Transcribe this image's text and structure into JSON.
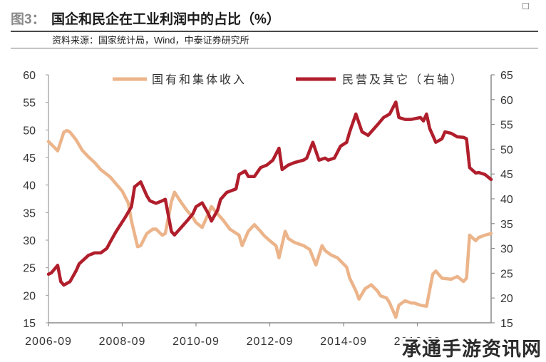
{
  "chart_data": {
    "type": "line",
    "figure_label": "图3：",
    "title": "国企和民企在工业利润中的占比（%）",
    "source": "资料来源：国家统计局，Wind，中泰证券研究所",
    "xlim": [
      "2006-09",
      "2018-09"
    ],
    "x_ticks": [
      "2006-09",
      "2008-09",
      "2010-09",
      "2012-09",
      "2014-09",
      "2016-09"
    ],
    "y_left": {
      "lim": [
        15,
        60
      ],
      "ticks": [
        15,
        20,
        25,
        30,
        35,
        40,
        45,
        50,
        55,
        60
      ]
    },
    "y_right": {
      "lim": [
        15,
        65
      ],
      "ticks": [
        15,
        20,
        25,
        30,
        35,
        40,
        45,
        50,
        55,
        60,
        65
      ]
    },
    "grid": false,
    "legend_position": "top",
    "series": [
      {
        "name": "国有和集体收入",
        "axis": "left",
        "color": "#ECB48A",
        "points": [
          [
            "2006-09",
            47.9
          ],
          [
            "2006-11",
            46.8
          ],
          [
            "2006-12",
            46.2
          ],
          [
            "2007-02",
            49.6
          ],
          [
            "2007-03",
            49.9
          ],
          [
            "2007-04",
            49.6
          ],
          [
            "2007-06",
            48.2
          ],
          [
            "2007-08",
            46.3
          ],
          [
            "2007-10",
            45.1
          ],
          [
            "2007-12",
            44.1
          ],
          [
            "2008-02",
            42.8
          ],
          [
            "2008-05",
            41.5
          ],
          [
            "2008-07",
            40.2
          ],
          [
            "2008-09",
            38.9
          ],
          [
            "2008-11",
            36.7
          ],
          [
            "2008-12",
            33.5
          ],
          [
            "2009-02",
            28.8
          ],
          [
            "2009-03",
            29.0
          ],
          [
            "2009-05",
            31.2
          ],
          [
            "2009-07",
            32.0
          ],
          [
            "2009-08",
            32.0
          ],
          [
            "2009-10",
            30.9
          ],
          [
            "2009-11",
            31.2
          ],
          [
            "2010-01",
            37.0
          ],
          [
            "2010-02",
            38.7
          ],
          [
            "2010-04",
            37.0
          ],
          [
            "2010-06",
            35.4
          ],
          [
            "2010-08",
            34.1
          ],
          [
            "2010-09",
            33.2
          ],
          [
            "2010-11",
            32.3
          ],
          [
            "2011-01",
            34.8
          ],
          [
            "2011-02",
            36.1
          ],
          [
            "2011-04",
            34.8
          ],
          [
            "2011-06",
            33.5
          ],
          [
            "2011-08",
            32.0
          ],
          [
            "2011-11",
            30.9
          ],
          [
            "2011-12",
            29.0
          ],
          [
            "2012-02",
            31.6
          ],
          [
            "2012-04",
            32.8
          ],
          [
            "2012-06",
            31.6
          ],
          [
            "2012-07",
            30.9
          ],
          [
            "2012-09",
            29.9
          ],
          [
            "2012-11",
            29.0
          ],
          [
            "2012-12",
            26.8
          ],
          [
            "2013-02",
            31.6
          ],
          [
            "2013-03",
            30.3
          ],
          [
            "2013-05",
            29.6
          ],
          [
            "2013-08",
            29.0
          ],
          [
            "2013-10",
            28.3
          ],
          [
            "2013-12",
            25.5
          ],
          [
            "2014-02",
            29.0
          ],
          [
            "2014-03",
            28.1
          ],
          [
            "2014-05",
            27.3
          ],
          [
            "2014-07",
            26.8
          ],
          [
            "2014-10",
            25.1
          ],
          [
            "2014-11",
            23.1
          ],
          [
            "2015-01",
            20.8
          ],
          [
            "2015-02",
            19.3
          ],
          [
            "2015-04",
            21.2
          ],
          [
            "2015-06",
            21.9
          ],
          [
            "2015-08",
            20.8
          ],
          [
            "2015-09",
            19.9
          ],
          [
            "2015-11",
            19.5
          ],
          [
            "2015-12",
            18.6
          ],
          [
            "2016-02",
            16.0
          ],
          [
            "2016-03",
            18.2
          ],
          [
            "2016-05",
            19.0
          ],
          [
            "2016-07",
            18.6
          ],
          [
            "2016-08",
            18.6
          ],
          [
            "2016-10",
            18.2
          ],
          [
            "2016-12",
            18.0
          ],
          [
            "2017-02",
            23.8
          ],
          [
            "2017-03",
            24.4
          ],
          [
            "2017-05",
            23.1
          ],
          [
            "2017-08",
            22.9
          ],
          [
            "2017-10",
            23.4
          ],
          [
            "2017-12",
            22.5
          ],
          [
            "2018-01",
            23.1
          ],
          [
            "2018-02",
            30.9
          ],
          [
            "2018-04",
            29.9
          ],
          [
            "2018-05",
            30.5
          ],
          [
            "2018-07",
            30.9
          ],
          [
            "2018-09",
            31.2
          ]
        ]
      },
      {
        "name": "民营及其它（右轴）",
        "axis": "right",
        "color": "#B01E2C",
        "points": [
          [
            "2006-09",
            24.8
          ],
          [
            "2006-10",
            25.1
          ],
          [
            "2006-12",
            26.6
          ],
          [
            "2007-01",
            23.3
          ],
          [
            "2007-02",
            22.6
          ],
          [
            "2007-04",
            23.3
          ],
          [
            "2007-06",
            25.5
          ],
          [
            "2007-07",
            26.9
          ],
          [
            "2007-10",
            28.6
          ],
          [
            "2007-12",
            29.1
          ],
          [
            "2008-02",
            29.1
          ],
          [
            "2008-04",
            30.0
          ],
          [
            "2008-05",
            31.2
          ],
          [
            "2008-07",
            33.4
          ],
          [
            "2008-10",
            36.3
          ],
          [
            "2008-12",
            38.4
          ],
          [
            "2009-01",
            42.4
          ],
          [
            "2009-03",
            43.4
          ],
          [
            "2009-05",
            40.6
          ],
          [
            "2009-06",
            39.6
          ],
          [
            "2009-08",
            39.1
          ],
          [
            "2009-10",
            39.6
          ],
          [
            "2009-11",
            39.9
          ],
          [
            "2010-01",
            33.4
          ],
          [
            "2010-02",
            32.7
          ],
          [
            "2010-04",
            34.1
          ],
          [
            "2010-06",
            35.5
          ],
          [
            "2010-08",
            37.0
          ],
          [
            "2010-09",
            38.4
          ],
          [
            "2010-11",
            39.2
          ],
          [
            "2011-01",
            37.0
          ],
          [
            "2011-02",
            35.5
          ],
          [
            "2011-04",
            37.7
          ],
          [
            "2011-05",
            39.9
          ],
          [
            "2011-07",
            41.3
          ],
          [
            "2011-10",
            42.0
          ],
          [
            "2011-11",
            44.9
          ],
          [
            "2012-01",
            45.6
          ],
          [
            "2012-02",
            44.5
          ],
          [
            "2012-04",
            44.5
          ],
          [
            "2012-06",
            46.3
          ],
          [
            "2012-08",
            46.8
          ],
          [
            "2012-10",
            47.8
          ],
          [
            "2012-12",
            50.2
          ],
          [
            "2013-01",
            45.9
          ],
          [
            "2013-03",
            46.8
          ],
          [
            "2013-05",
            47.3
          ],
          [
            "2013-08",
            47.8
          ],
          [
            "2013-09",
            48.2
          ],
          [
            "2013-11",
            51.4
          ],
          [
            "2014-01",
            47.8
          ],
          [
            "2014-03",
            48.2
          ],
          [
            "2014-04",
            47.8
          ],
          [
            "2014-06",
            48.2
          ],
          [
            "2014-08",
            50.6
          ],
          [
            "2014-10",
            51.4
          ],
          [
            "2014-11",
            53.5
          ],
          [
            "2015-01",
            57.1
          ],
          [
            "2015-03",
            53.5
          ],
          [
            "2015-05",
            52.8
          ],
          [
            "2015-06",
            53.5
          ],
          [
            "2015-08",
            54.9
          ],
          [
            "2015-10",
            56.4
          ],
          [
            "2015-12",
            57.1
          ],
          [
            "2016-02",
            59.5
          ],
          [
            "2016-03",
            56.4
          ],
          [
            "2016-05",
            56.0
          ],
          [
            "2016-07",
            56.0
          ],
          [
            "2016-10",
            56.4
          ],
          [
            "2016-11",
            55.7
          ],
          [
            "2016-12",
            57.1
          ],
          [
            "2017-01",
            54.2
          ],
          [
            "2017-03",
            51.4
          ],
          [
            "2017-05",
            52.1
          ],
          [
            "2017-06",
            53.5
          ],
          [
            "2017-08",
            53.2
          ],
          [
            "2017-10",
            52.5
          ],
          [
            "2017-12",
            52.4
          ],
          [
            "2018-01",
            52.1
          ],
          [
            "2018-02",
            46.3
          ],
          [
            "2018-04",
            45.2
          ],
          [
            "2018-05",
            45.3
          ],
          [
            "2018-07",
            44.9
          ],
          [
            "2018-09",
            43.9
          ]
        ]
      }
    ]
  },
  "watermark": {
    "text": "承通手游资讯网"
  }
}
